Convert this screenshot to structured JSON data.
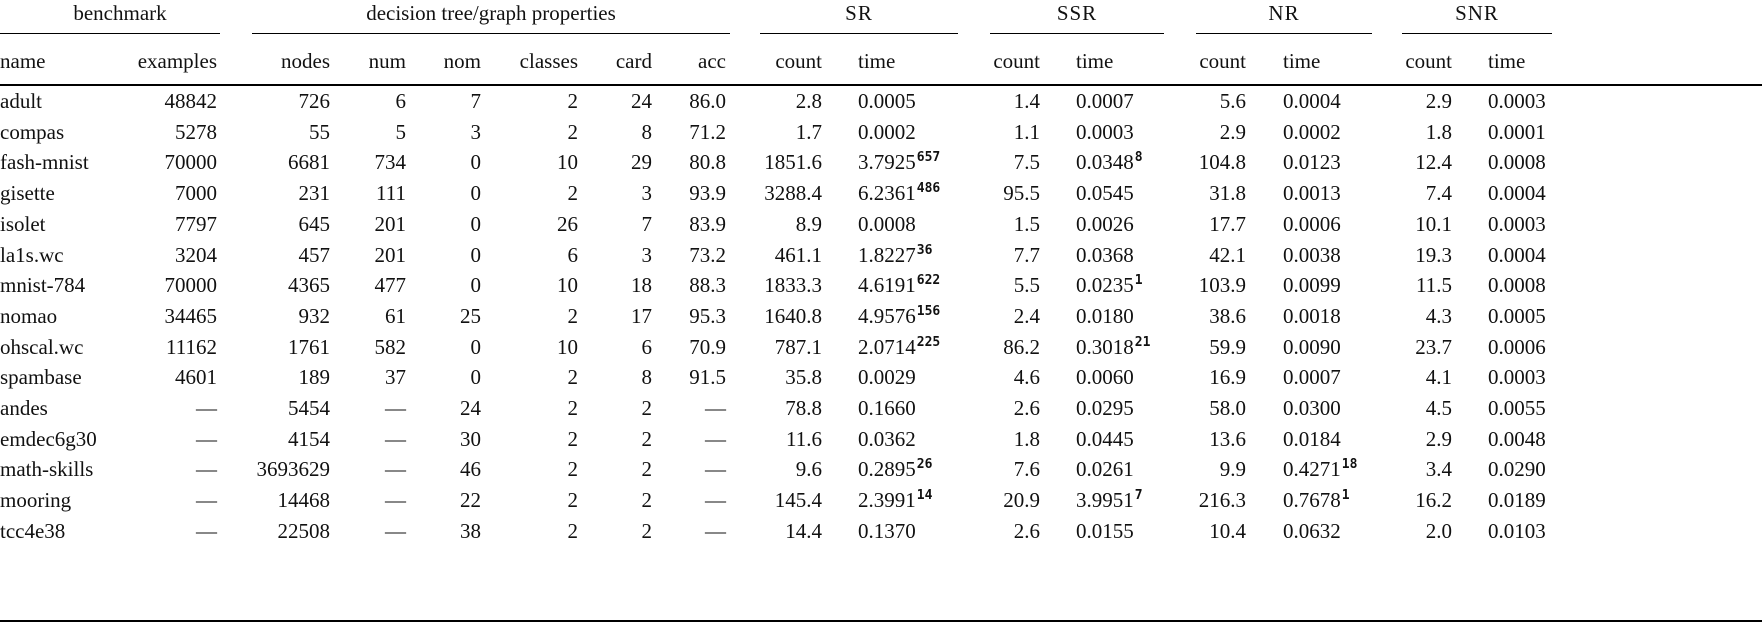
{
  "groups": [
    {
      "label": "benchmark"
    },
    {
      "label": "decision tree/graph properties"
    },
    {
      "label": "SR"
    },
    {
      "label": "SSR"
    },
    {
      "label": "NR"
    },
    {
      "label": "SNR"
    }
  ],
  "headers": [
    "name",
    "examples",
    "nodes",
    "num",
    "nom",
    "classes",
    "card",
    "acc",
    "count",
    "time",
    "count",
    "time",
    "count",
    "time",
    "count",
    "time"
  ],
  "rows": [
    {
      "name": "adult",
      "examples": "48842",
      "nodes": "726",
      "num": "6",
      "nom": "7",
      "classes": "2",
      "card": "24",
      "acc": "86.0",
      "sr_count": "2.8",
      "sr_time": "0.0005",
      "sr_sup": "",
      "ssr_count": "1.4",
      "ssr_time": "0.0007",
      "ssr_sup": "",
      "nr_count": "5.6",
      "nr_time": "0.0004",
      "nr_sup": "",
      "snr_count": "2.9",
      "snr_time": "0.0003"
    },
    {
      "name": "compas",
      "examples": "5278",
      "nodes": "55",
      "num": "5",
      "nom": "3",
      "classes": "2",
      "card": "8",
      "acc": "71.2",
      "sr_count": "1.7",
      "sr_time": "0.0002",
      "sr_sup": "",
      "ssr_count": "1.1",
      "ssr_time": "0.0003",
      "ssr_sup": "",
      "nr_count": "2.9",
      "nr_time": "0.0002",
      "nr_sup": "",
      "snr_count": "1.8",
      "snr_time": "0.0001"
    },
    {
      "name": "fash-mnist",
      "examples": "70000",
      "nodes": "6681",
      "num": "734",
      "nom": "0",
      "classes": "10",
      "card": "29",
      "acc": "80.8",
      "sr_count": "1851.6",
      "sr_time": "3.7925",
      "sr_sup": "657",
      "ssr_count": "7.5",
      "ssr_time": "0.0348",
      "ssr_sup": "8",
      "nr_count": "104.8",
      "nr_time": "0.0123",
      "nr_sup": "",
      "snr_count": "12.4",
      "snr_time": "0.0008"
    },
    {
      "name": "gisette",
      "examples": "7000",
      "nodes": "231",
      "num": "111",
      "nom": "0",
      "classes": "2",
      "card": "3",
      "acc": "93.9",
      "sr_count": "3288.4",
      "sr_time": "6.2361",
      "sr_sup": "486",
      "ssr_count": "95.5",
      "ssr_time": "0.0545",
      "ssr_sup": "",
      "nr_count": "31.8",
      "nr_time": "0.0013",
      "nr_sup": "",
      "snr_count": "7.4",
      "snr_time": "0.0004"
    },
    {
      "name": "isolet",
      "examples": "7797",
      "nodes": "645",
      "num": "201",
      "nom": "0",
      "classes": "26",
      "card": "7",
      "acc": "83.9",
      "sr_count": "8.9",
      "sr_time": "0.0008",
      "sr_sup": "",
      "ssr_count": "1.5",
      "ssr_time": "0.0026",
      "ssr_sup": "",
      "nr_count": "17.7",
      "nr_time": "0.0006",
      "nr_sup": "",
      "snr_count": "10.1",
      "snr_time": "0.0003"
    },
    {
      "name": "la1s.wc",
      "examples": "3204",
      "nodes": "457",
      "num": "201",
      "nom": "0",
      "classes": "6",
      "card": "3",
      "acc": "73.2",
      "sr_count": "461.1",
      "sr_time": "1.8227",
      "sr_sup": "36",
      "ssr_count": "7.7",
      "ssr_time": "0.0368",
      "ssr_sup": "",
      "nr_count": "42.1",
      "nr_time": "0.0038",
      "nr_sup": "",
      "snr_count": "19.3",
      "snr_time": "0.0004"
    },
    {
      "name": "mnist-784",
      "examples": "70000",
      "nodes": "4365",
      "num": "477",
      "nom": "0",
      "classes": "10",
      "card": "18",
      "acc": "88.3",
      "sr_count": "1833.3",
      "sr_time": "4.6191",
      "sr_sup": "622",
      "ssr_count": "5.5",
      "ssr_time": "0.0235",
      "ssr_sup": "1",
      "nr_count": "103.9",
      "nr_time": "0.0099",
      "nr_sup": "",
      "snr_count": "11.5",
      "snr_time": "0.0008"
    },
    {
      "name": "nomao",
      "examples": "34465",
      "nodes": "932",
      "num": "61",
      "nom": "25",
      "classes": "2",
      "card": "17",
      "acc": "95.3",
      "sr_count": "1640.8",
      "sr_time": "4.9576",
      "sr_sup": "156",
      "ssr_count": "2.4",
      "ssr_time": "0.0180",
      "ssr_sup": "",
      "nr_count": "38.6",
      "nr_time": "0.0018",
      "nr_sup": "",
      "snr_count": "4.3",
      "snr_time": "0.0005"
    },
    {
      "name": "ohscal.wc",
      "examples": "11162",
      "nodes": "1761",
      "num": "582",
      "nom": "0",
      "classes": "10",
      "card": "6",
      "acc": "70.9",
      "sr_count": "787.1",
      "sr_time": "2.0714",
      "sr_sup": "225",
      "ssr_count": "86.2",
      "ssr_time": "0.3018",
      "ssr_sup": "21",
      "nr_count": "59.9",
      "nr_time": "0.0090",
      "nr_sup": "",
      "snr_count": "23.7",
      "snr_time": "0.0006"
    },
    {
      "name": "spambase",
      "examples": "4601",
      "nodes": "189",
      "num": "37",
      "nom": "0",
      "classes": "2",
      "card": "8",
      "acc": "91.5",
      "sr_count": "35.8",
      "sr_time": "0.0029",
      "sr_sup": "",
      "ssr_count": "4.6",
      "ssr_time": "0.0060",
      "ssr_sup": "",
      "nr_count": "16.9",
      "nr_time": "0.0007",
      "nr_sup": "",
      "snr_count": "4.1",
      "snr_time": "0.0003"
    },
    {
      "name": "andes",
      "examples": "—",
      "nodes": "5454",
      "num": "—",
      "nom": "24",
      "classes": "2",
      "card": "2",
      "acc": "—",
      "sr_count": "78.8",
      "sr_time": "0.1660",
      "sr_sup": "",
      "ssr_count": "2.6",
      "ssr_time": "0.0295",
      "ssr_sup": "",
      "nr_count": "58.0",
      "nr_time": "0.0300",
      "nr_sup": "",
      "snr_count": "4.5",
      "snr_time": "0.0055"
    },
    {
      "name": "emdec6g30",
      "examples": "—",
      "nodes": "4154",
      "num": "—",
      "nom": "30",
      "classes": "2",
      "card": "2",
      "acc": "—",
      "sr_count": "11.6",
      "sr_time": "0.0362",
      "sr_sup": "",
      "ssr_count": "1.8",
      "ssr_time": "0.0445",
      "ssr_sup": "",
      "nr_count": "13.6",
      "nr_time": "0.0184",
      "nr_sup": "",
      "snr_count": "2.9",
      "snr_time": "0.0048"
    },
    {
      "name": "math-skills",
      "examples": "—",
      "nodes": "3693629",
      "num": "—",
      "nom": "46",
      "classes": "2",
      "card": "2",
      "acc": "—",
      "sr_count": "9.6",
      "sr_time": "0.2895",
      "sr_sup": "26",
      "ssr_count": "7.6",
      "ssr_time": "0.0261",
      "ssr_sup": "",
      "nr_count": "9.9",
      "nr_time": "0.4271",
      "nr_sup": "18",
      "snr_count": "3.4",
      "snr_time": "0.0290"
    },
    {
      "name": "mooring",
      "examples": "—",
      "nodes": "14468",
      "num": "—",
      "nom": "22",
      "classes": "2",
      "card": "2",
      "acc": "—",
      "sr_count": "145.4",
      "sr_time": "2.3991",
      "sr_sup": "14",
      "ssr_count": "20.9",
      "ssr_time": "3.9951",
      "ssr_sup": "7",
      "nr_count": "216.3",
      "nr_time": "0.7678",
      "nr_sup": "1",
      "snr_count": "16.2",
      "snr_time": "0.0189"
    },
    {
      "name": "tcc4e38",
      "examples": "—",
      "nodes": "22508",
      "num": "—",
      "nom": "38",
      "classes": "2",
      "card": "2",
      "acc": "—",
      "sr_count": "14.4",
      "sr_time": "0.1370",
      "sr_sup": "",
      "ssr_count": "2.6",
      "ssr_time": "0.0155",
      "ssr_sup": "",
      "nr_count": "10.4",
      "nr_time": "0.0632",
      "nr_sup": "",
      "snr_count": "2.0",
      "snr_time": "0.0103"
    }
  ]
}
